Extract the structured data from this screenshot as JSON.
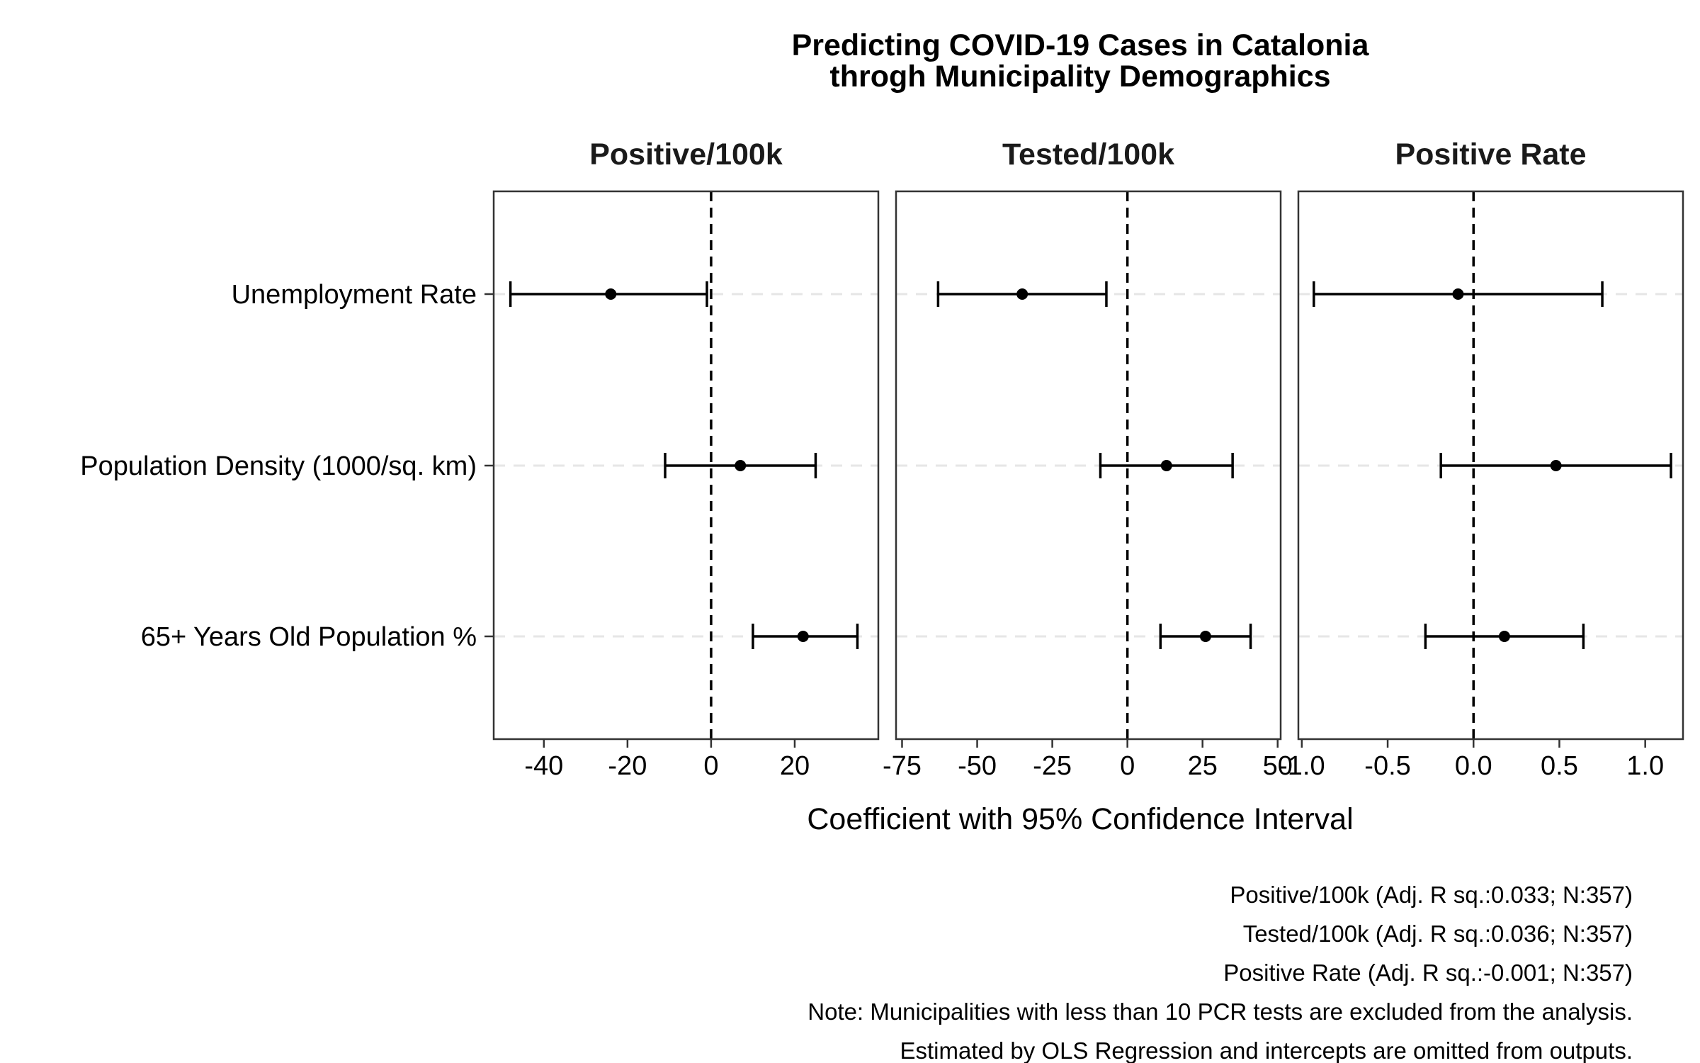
{
  "chart_data": {
    "type": "coefficient-plot",
    "title": [
      "Predicting COVID-19 Cases in Catalonia",
      "throgh Municipality Demographics"
    ],
    "xlabel": "Coefficient with 95% Confidence Interval",
    "ylabel": "",
    "categories": [
      "Unemployment Rate",
      "Population Density (1000/sq. km)",
      "65+ Years Old Population %"
    ],
    "reference_line": 0,
    "grid": "horizontal dashed",
    "panels": [
      {
        "name": "Positive/100k",
        "xlim": [
          -52,
          40
        ],
        "ticks": [
          -40,
          -20,
          0,
          20
        ],
        "points": [
          {
            "category": "Unemployment Rate",
            "estimate": -24,
            "low": -48,
            "high": -1
          },
          {
            "category": "Population Density (1000/sq. km)",
            "estimate": 7,
            "low": -11,
            "high": 25
          },
          {
            "category": "65+ Years Old Population %",
            "estimate": 22,
            "low": 10,
            "high": 35
          }
        ]
      },
      {
        "name": "Tested/100k",
        "xlim": [
          -77,
          51
        ],
        "ticks": [
          -75,
          -50,
          -25,
          0,
          25,
          50
        ],
        "points": [
          {
            "category": "Unemployment Rate",
            "estimate": -35,
            "low": -63,
            "high": -7
          },
          {
            "category": "Population Density (1000/sq. km)",
            "estimate": 13,
            "low": -9,
            "high": 35
          },
          {
            "category": "65+ Years Old Population %",
            "estimate": 26,
            "low": 11,
            "high": 41
          }
        ]
      },
      {
        "name": "Positive Rate",
        "xlim": [
          -1.02,
          1.22
        ],
        "ticks": [
          -1.0,
          -0.5,
          0.0,
          0.5,
          1.0
        ],
        "points": [
          {
            "category": "Unemployment Rate",
            "estimate": -0.09,
            "low": -0.93,
            "high": 0.75
          },
          {
            "category": "Population Density (1000/sq. km)",
            "estimate": 0.48,
            "low": -0.19,
            "high": 1.15
          },
          {
            "category": "65+ Years Old Population %",
            "estimate": 0.18,
            "low": -0.28,
            "high": 0.64
          }
        ]
      }
    ]
  },
  "captions": [
    "Positive/100k (Adj. R sq.:0.033; N:357)",
    "Tested/100k (Adj. R sq.:0.036; N:357)",
    "Positive Rate (Adj. R sq.:-0.001; N:357)",
    "Note: Municipalities with less than 10 PCR tests are excluded from the analysis.",
    "Estimated by OLS Regression and intercepts are omitted from outputs."
  ]
}
